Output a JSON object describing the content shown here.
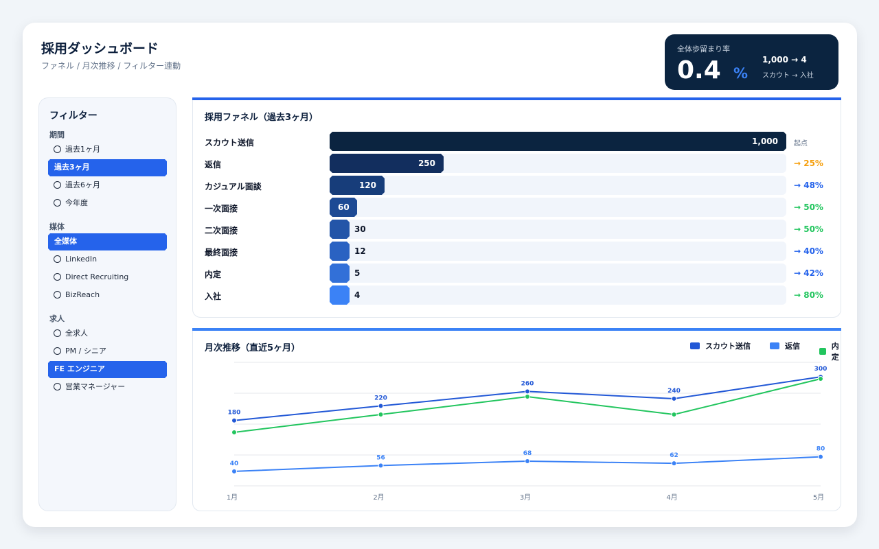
{
  "header": {
    "title": "採用ダッシュボード",
    "subtitle": "ファネル / 月次推移 / フィルター連動"
  },
  "kpi": {
    "label": "全体歩留まり率",
    "value": "0.4",
    "unit": "%",
    "flow": "1,000 → 4",
    "flow_sub": "スカウト → 入社"
  },
  "filters": {
    "title": "フィルター",
    "groups": [
      {
        "label": "期間",
        "options": [
          "過去1ヶ月",
          "過去3ヶ月",
          "過去6ヶ月",
          "今年度"
        ],
        "selected": 1
      },
      {
        "label": "媒体",
        "options": [
          "全媒体",
          "LinkedIn",
          "Direct Recruiting",
          "BizReach"
        ],
        "selected": 0
      },
      {
        "label": "求人",
        "options": [
          "全求人",
          "PM / シニア",
          "FE エンジニア",
          "営業マネージャー"
        ],
        "selected": 2
      }
    ]
  },
  "funnel": {
    "title": "採用ファネル（過去3ヶ月）",
    "stages": [
      {
        "name": "スカウト送信",
        "value": 1000,
        "label": "1,000",
        "conv": "起点",
        "color": "#0b2440",
        "conv_color": "#64748b"
      },
      {
        "name": "返信",
        "value": 250,
        "label": "250",
        "conv": "→ 25%",
        "color": "#122e5e",
        "conv_color": "#f59e0b"
      },
      {
        "name": "カジュアル面談",
        "value": 120,
        "label": "120",
        "conv": "→ 48%",
        "color": "#173d7a",
        "conv_color": "#2563eb"
      },
      {
        "name": "一次面接",
        "value": 60,
        "label": "60",
        "conv": "→ 50%",
        "color": "#1d4a94",
        "conv_color": "#22c55e"
      },
      {
        "name": "二次面接",
        "value": 30,
        "label": "30",
        "conv": "→ 50%",
        "color": "#2355a8",
        "conv_color": "#22c55e"
      },
      {
        "name": "最終面接",
        "value": 12,
        "label": "12",
        "conv": "→ 40%",
        "color": "#2a62c2",
        "conv_color": "#2563eb"
      },
      {
        "name": "内定",
        "value": 5,
        "label": "5",
        "conv": "→ 42%",
        "color": "#3270d8",
        "conv_color": "#2563eb"
      },
      {
        "name": "入社",
        "value": 4,
        "label": "4",
        "conv": "→ 80%",
        "color": "#3b82f6",
        "conv_color": "#22c55e"
      }
    ]
  },
  "trend": {
    "title": "月次推移（直近5ヶ月）",
    "chart_data": {
      "type": "line",
      "categories": [
        "1月",
        "2月",
        "3月",
        "4月",
        "5月"
      ],
      "series": [
        {
          "name": "スカウト送信",
          "color": "#2258d6",
          "values": [
            180,
            220,
            260,
            240,
            300
          ]
        },
        {
          "name": "返信",
          "color": "#3b82f6",
          "values": [
            40,
            56,
            68,
            62,
            80
          ]
        },
        {
          "name": "内定",
          "color": "#22c55e",
          "values": [
            null,
            null,
            null,
            null,
            null
          ]
        }
      ]
    }
  }
}
